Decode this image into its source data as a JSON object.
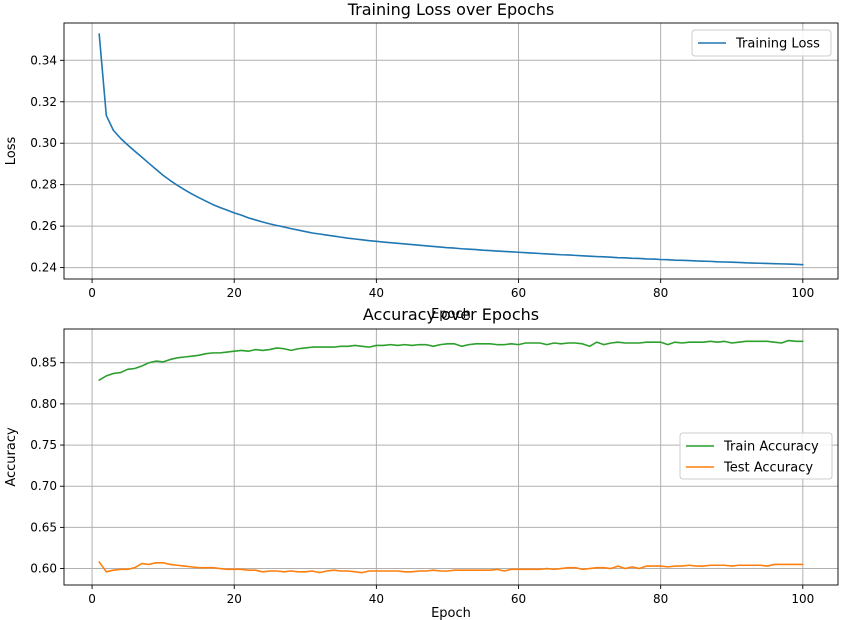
{
  "chart_data": [
    {
      "type": "line",
      "title": "Training Loss over Epochs",
      "xlabel": "Epoch",
      "ylabel": "Loss",
      "xlim": [
        -3.95,
        104.95
      ],
      "ylim": [
        0.2345,
        0.358
      ],
      "xticks": [
        0,
        20,
        40,
        60,
        80,
        100
      ],
      "yticks": [
        0.24,
        0.26,
        0.28,
        0.3,
        0.32,
        0.34
      ],
      "ytick_labels": [
        "0.24",
        "0.26",
        "0.28",
        "0.30",
        "0.32",
        "0.34"
      ],
      "grid": true,
      "legend_position": "top-right",
      "series": [
        {
          "name": "Training Loss",
          "color": "#1f77b4",
          "x": [
            1,
            2,
            3,
            4,
            5,
            6,
            7,
            8,
            9,
            10,
            11,
            12,
            13,
            14,
            15,
            16,
            17,
            18,
            19,
            20,
            21,
            22,
            23,
            24,
            25,
            26,
            27,
            28,
            29,
            30,
            31,
            32,
            33,
            34,
            35,
            36,
            37,
            38,
            39,
            40,
            41,
            42,
            43,
            44,
            45,
            46,
            47,
            48,
            49,
            50,
            51,
            52,
            53,
            54,
            55,
            56,
            57,
            58,
            59,
            60,
            61,
            62,
            63,
            64,
            65,
            66,
            67,
            68,
            69,
            70,
            71,
            72,
            73,
            74,
            75,
            76,
            77,
            78,
            79,
            80,
            81,
            82,
            83,
            84,
            85,
            86,
            87,
            88,
            89,
            90,
            91,
            92,
            93,
            94,
            95,
            96,
            97,
            98,
            99,
            100
          ],
          "values": [
            0.3527,
            0.3134,
            0.3062,
            0.3024,
            0.2992,
            0.2962,
            0.2933,
            0.2903,
            0.2874,
            0.2845,
            0.282,
            0.2797,
            0.2776,
            0.2756,
            0.2738,
            0.2721,
            0.2704,
            0.269,
            0.2677,
            0.2664,
            0.2653,
            0.264,
            0.263,
            0.262,
            0.2611,
            0.2603,
            0.2596,
            0.2588,
            0.2581,
            0.2574,
            0.2567,
            0.2562,
            0.2557,
            0.2552,
            0.2547,
            0.2542,
            0.2538,
            0.2534,
            0.253,
            0.2527,
            0.2523,
            0.252,
            0.2517,
            0.2514,
            0.2511,
            0.2508,
            0.2505,
            0.2502,
            0.2499,
            0.2496,
            0.2494,
            0.2491,
            0.2489,
            0.2487,
            0.2484,
            0.2482,
            0.248,
            0.2478,
            0.2476,
            0.2474,
            0.2472,
            0.247,
            0.2468,
            0.2466,
            0.2464,
            0.2462,
            0.2461,
            0.2459,
            0.2457,
            0.2455,
            0.2453,
            0.2452,
            0.245,
            0.2448,
            0.2447,
            0.2445,
            0.2444,
            0.2442,
            0.2441,
            0.2439,
            0.2438,
            0.2436,
            0.2435,
            0.2434,
            0.2432,
            0.2431,
            0.243,
            0.2428,
            0.2427,
            0.2426,
            0.2425,
            0.2423,
            0.2422,
            0.2421,
            0.242,
            0.2419,
            0.2418,
            0.2417,
            0.2416,
            0.2414
          ]
        }
      ]
    },
    {
      "type": "line",
      "title": "Accuracy over Epochs",
      "xlabel": "Epoch",
      "ylabel": "Accuracy",
      "xlim": [
        -3.95,
        104.95
      ],
      "ylim": [
        0.58,
        0.891
      ],
      "xticks": [
        0,
        20,
        40,
        60,
        80,
        100
      ],
      "yticks": [
        0.6,
        0.65,
        0.7,
        0.75,
        0.8,
        0.85
      ],
      "ytick_labels": [
        "0.60",
        "0.65",
        "0.70",
        "0.75",
        "0.80",
        "0.85"
      ],
      "grid": true,
      "legend_position": "center-right",
      "series": [
        {
          "name": "Train Accuracy",
          "color": "#2ca02c",
          "x": [
            1,
            2,
            3,
            4,
            5,
            6,
            7,
            8,
            9,
            10,
            11,
            12,
            13,
            14,
            15,
            16,
            17,
            18,
            19,
            20,
            21,
            22,
            23,
            24,
            25,
            26,
            27,
            28,
            29,
            30,
            31,
            32,
            33,
            34,
            35,
            36,
            37,
            38,
            39,
            40,
            41,
            42,
            43,
            44,
            45,
            46,
            47,
            48,
            49,
            50,
            51,
            52,
            53,
            54,
            55,
            56,
            57,
            58,
            59,
            60,
            61,
            62,
            63,
            64,
            65,
            66,
            67,
            68,
            69,
            70,
            71,
            72,
            73,
            74,
            75,
            76,
            77,
            78,
            79,
            80,
            81,
            82,
            83,
            84,
            85,
            86,
            87,
            88,
            89,
            90,
            91,
            92,
            93,
            94,
            95,
            96,
            97,
            98,
            99,
            100
          ],
          "values": [
            0.829,
            0.834,
            0.837,
            0.838,
            0.842,
            0.843,
            0.846,
            0.85,
            0.852,
            0.851,
            0.854,
            0.856,
            0.857,
            0.858,
            0.859,
            0.861,
            0.862,
            0.862,
            0.863,
            0.864,
            0.865,
            0.864,
            0.866,
            0.865,
            0.866,
            0.868,
            0.867,
            0.865,
            0.867,
            0.868,
            0.869,
            0.869,
            0.869,
            0.869,
            0.87,
            0.87,
            0.871,
            0.87,
            0.869,
            0.871,
            0.871,
            0.872,
            0.871,
            0.872,
            0.871,
            0.872,
            0.872,
            0.87,
            0.872,
            0.873,
            0.873,
            0.87,
            0.872,
            0.873,
            0.873,
            0.873,
            0.872,
            0.872,
            0.873,
            0.872,
            0.874,
            0.874,
            0.874,
            0.872,
            0.874,
            0.873,
            0.874,
            0.874,
            0.873,
            0.87,
            0.875,
            0.872,
            0.874,
            0.875,
            0.874,
            0.874,
            0.874,
            0.875,
            0.875,
            0.875,
            0.872,
            0.875,
            0.874,
            0.875,
            0.875,
            0.875,
            0.876,
            0.875,
            0.876,
            0.874,
            0.875,
            0.876,
            0.876,
            0.876,
            0.876,
            0.875,
            0.874,
            0.877,
            0.876,
            0.876
          ]
        },
        {
          "name": "Test Accuracy",
          "color": "#ff7f0e",
          "x": [
            1,
            2,
            3,
            4,
            5,
            6,
            7,
            8,
            9,
            10,
            11,
            12,
            13,
            14,
            15,
            16,
            17,
            18,
            19,
            20,
            21,
            22,
            23,
            24,
            25,
            26,
            27,
            28,
            29,
            30,
            31,
            32,
            33,
            34,
            35,
            36,
            37,
            38,
            39,
            40,
            41,
            42,
            43,
            44,
            45,
            46,
            47,
            48,
            49,
            50,
            51,
            52,
            53,
            54,
            55,
            56,
            57,
            58,
            59,
            60,
            61,
            62,
            63,
            64,
            65,
            66,
            67,
            68,
            69,
            70,
            71,
            72,
            73,
            74,
            75,
            76,
            77,
            78,
            79,
            80,
            81,
            82,
            83,
            84,
            85,
            86,
            87,
            88,
            89,
            90,
            91,
            92,
            93,
            94,
            95,
            96,
            97,
            98,
            99,
            100
          ],
          "values": [
            0.608,
            0.596,
            0.598,
            0.599,
            0.599,
            0.601,
            0.606,
            0.605,
            0.607,
            0.607,
            0.605,
            0.604,
            0.603,
            0.602,
            0.601,
            0.601,
            0.601,
            0.6,
            0.599,
            0.599,
            0.599,
            0.598,
            0.598,
            0.596,
            0.597,
            0.597,
            0.596,
            0.597,
            0.596,
            0.596,
            0.597,
            0.595,
            0.597,
            0.598,
            0.597,
            0.597,
            0.596,
            0.595,
            0.597,
            0.597,
            0.597,
            0.597,
            0.597,
            0.596,
            0.596,
            0.597,
            0.597,
            0.598,
            0.597,
            0.597,
            0.598,
            0.598,
            0.598,
            0.598,
            0.598,
            0.598,
            0.599,
            0.597,
            0.599,
            0.599,
            0.599,
            0.599,
            0.599,
            0.6,
            0.599,
            0.6,
            0.601,
            0.601,
            0.599,
            0.6,
            0.601,
            0.601,
            0.6,
            0.603,
            0.6,
            0.602,
            0.6,
            0.603,
            0.603,
            0.603,
            0.602,
            0.603,
            0.603,
            0.604,
            0.603,
            0.603,
            0.604,
            0.604,
            0.604,
            0.603,
            0.604,
            0.604,
            0.604,
            0.604,
            0.603,
            0.605,
            0.605,
            0.605,
            0.605,
            0.605
          ]
        }
      ]
    }
  ]
}
